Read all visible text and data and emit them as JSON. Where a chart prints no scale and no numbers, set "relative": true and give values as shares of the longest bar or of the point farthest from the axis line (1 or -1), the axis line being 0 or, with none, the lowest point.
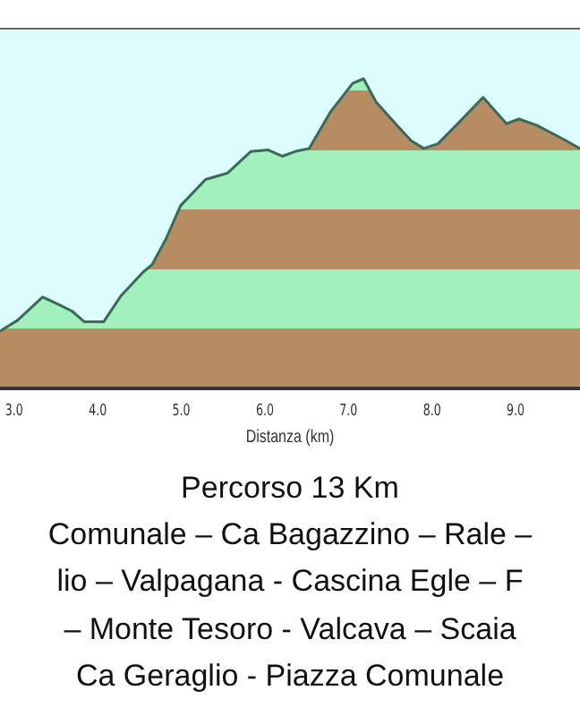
{
  "chart_data": {
    "type": "area",
    "relative": true,
    "xlabel": "Distanza (km)",
    "xlim": [
      2.83,
      9.77
    ],
    "xticks": [
      {
        "value": 3,
        "label": "3.0"
      },
      {
        "value": 4,
        "label": "4.0"
      },
      {
        "value": 5,
        "label": "5.0"
      },
      {
        "value": 6,
        "label": "6.0"
      },
      {
        "value": 7,
        "label": "7.0"
      },
      {
        "value": 8,
        "label": "8.0"
      },
      {
        "value": 9,
        "label": "9.0"
      }
    ],
    "series": [
      {
        "color": "#3a6a58",
        "x": [
          2.83,
          3.04,
          3.34,
          3.54,
          3.69,
          3.84,
          4.07,
          4.28,
          4.54,
          4.65,
          4.82,
          4.99,
          5.29,
          5.55,
          5.83,
          6.04,
          6.21,
          6.36,
          6.53,
          6.79,
          7.05,
          7.18,
          7.33,
          7.58,
          7.75,
          7.9,
          8.07,
          8.29,
          8.61,
          8.89,
          9.04,
          9.25,
          9.57,
          9.77
        ],
        "values": [
          0.185,
          0.22,
          0.295,
          0.27,
          0.25,
          0.215,
          0.215,
          0.3,
          0.375,
          0.4,
          0.485,
          0.59,
          0.675,
          0.695,
          0.765,
          0.77,
          0.75,
          0.765,
          0.775,
          0.895,
          0.985,
          1,
          0.925,
          0.85,
          0.8,
          0.775,
          0.79,
          0.85,
          0.94,
          0.855,
          0.87,
          0.85,
          0.805,
          0.775
        ]
      }
    ],
    "annotations": [
      "Percorso 13 Km",
      "Comunale – Ca Bagazzino – Rale –",
      "lio – Valpagana - Cascina Egle – F",
      "– Monte Tesoro - Valcava – Scaia",
      "Ca Geraglio - Piazza Comunale"
    ]
  }
}
